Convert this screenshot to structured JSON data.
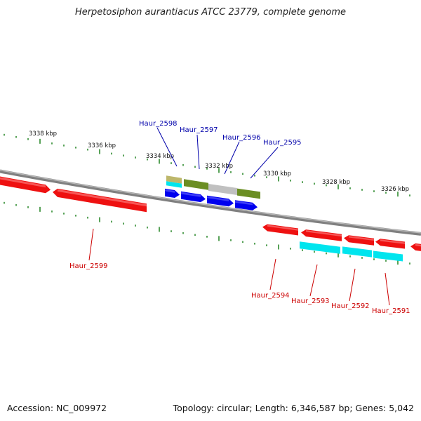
{
  "header": {
    "title": "Herpetosiphon aurantiacus ATCC 23779, complete genome"
  },
  "footer": {
    "accession": "Accession: NC_009972",
    "summary": "Topology: circular; Length: 6,346,587 bp; Genes: 5,042"
  },
  "colors": {
    "background": "#ffffff",
    "backbone": "#808080",
    "tick": "#2e8b2e",
    "forward_label": "#0000aa",
    "reverse_label": "#cc0000",
    "red_gene": "#ee1111",
    "blue_gene": "#0000ee",
    "cyan_gene": "#00e5ee",
    "olive_feature": "#6b8e23",
    "grey_feature": "#c0c0c0",
    "tan_feature": "#bdb76b"
  },
  "scale": {
    "unit": "kbp",
    "ticks": [
      {
        "label": "3338 kbp"
      },
      {
        "label": "3336 kbp"
      },
      {
        "label": "3334 kbp"
      },
      {
        "label": "3332 kbp"
      },
      {
        "label": "3330 kbp"
      },
      {
        "label": "3328 kbp"
      },
      {
        "label": "3326 kbp"
      }
    ]
  },
  "genes": {
    "forward_labels": [
      "Haur_2598",
      "Haur_2597",
      "Haur_2596",
      "Haur_2595"
    ],
    "reverse_labels": [
      "Haur_2599",
      "Haur_2594",
      "Haur_2593",
      "Haur_2592",
      "Haur_2591"
    ]
  }
}
